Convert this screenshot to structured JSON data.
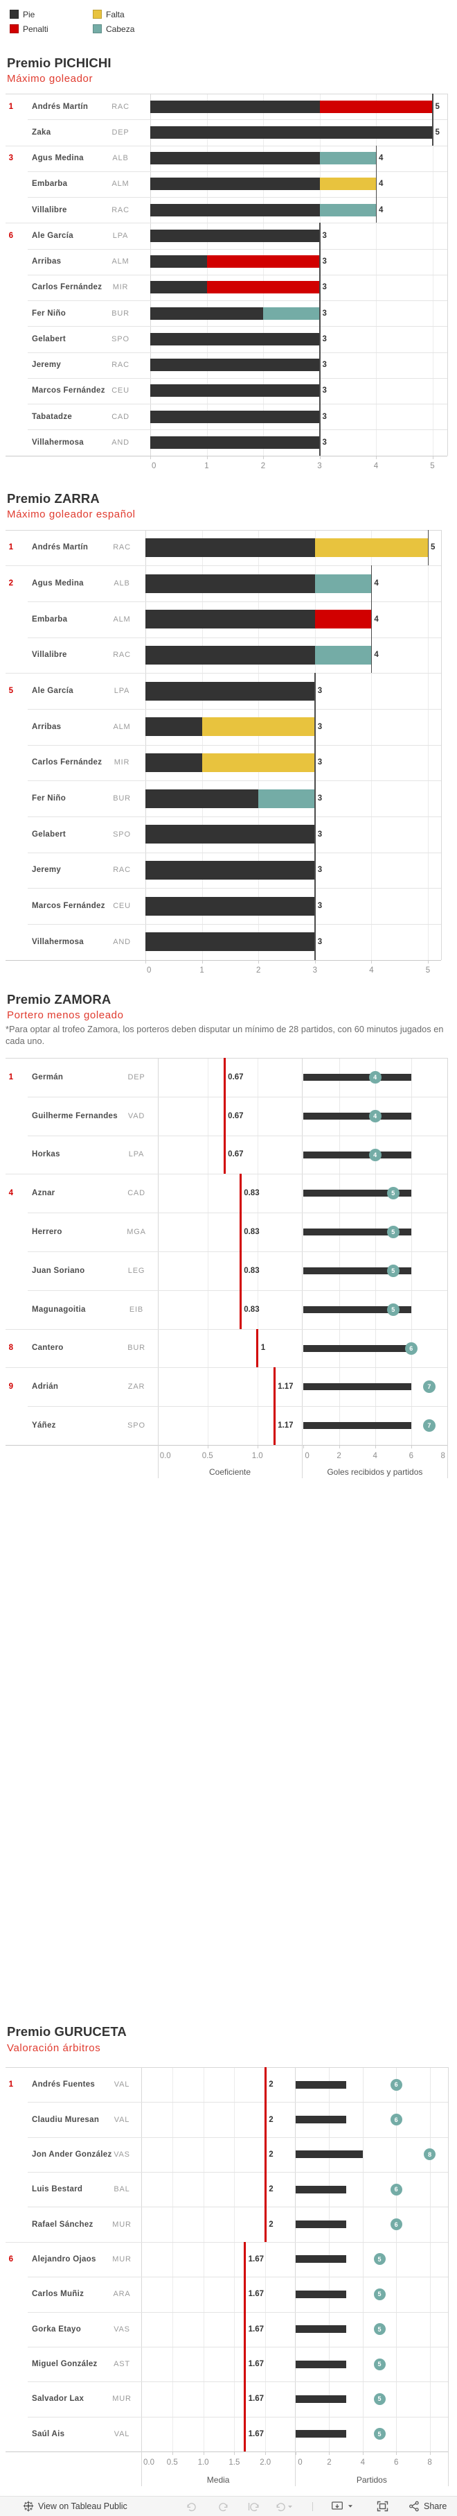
{
  "legend": {
    "items": [
      {
        "label": "Pie",
        "color": "#333333"
      },
      {
        "label": "Penalti",
        "color": "#d10000"
      },
      {
        "label": "Falta",
        "color": "#e8c33e"
      },
      {
        "label": "Cabeza",
        "color": "#74aca6"
      }
    ]
  },
  "colors": {
    "pie": "#333333",
    "penalti": "#d10000",
    "falta": "#e8c33e",
    "cabeza": "#74aca6",
    "accent_red": "#d10000",
    "subtitle_red": "#e03b2f",
    "bar_dark": "#333333",
    "circle_teal": "#74aca6"
  },
  "chart_data": [
    {
      "type": "bar",
      "stacked": true,
      "title": "Premio PICHICHI",
      "subtitle": "Máximo goleador",
      "xlim": [
        0,
        5
      ],
      "xticks": [
        "0",
        "1",
        "2",
        "3",
        "4",
        "5"
      ],
      "legend_entries": [
        "Pie",
        "Penalti",
        "Falta",
        "Cabeza"
      ],
      "rows": [
        {
          "rank": "1",
          "name": "Andrés Martín",
          "team": "RAC",
          "total": 5,
          "segments": {
            "pie": 3,
            "penalti": 2
          }
        },
        {
          "rank": "",
          "name": "Zaka",
          "team": "DEP",
          "total": 5,
          "segments": {
            "pie": 5
          }
        },
        {
          "rank": "3",
          "name": "Agus Medina",
          "team": "ALB",
          "total": 4,
          "segments": {
            "pie": 3,
            "cabeza": 1
          }
        },
        {
          "rank": "",
          "name": "Embarba",
          "team": "ALM",
          "total": 4,
          "segments": {
            "pie": 3,
            "falta": 1
          }
        },
        {
          "rank": "",
          "name": "Villalibre",
          "team": "RAC",
          "total": 4,
          "segments": {
            "pie": 3,
            "cabeza": 1
          }
        },
        {
          "rank": "6",
          "name": "Ale García",
          "team": "LPA",
          "total": 3,
          "segments": {
            "pie": 3
          }
        },
        {
          "rank": "",
          "name": "Arribas",
          "team": "ALM",
          "total": 3,
          "segments": {
            "pie": 1,
            "penalti": 2
          }
        },
        {
          "rank": "",
          "name": "Carlos Fernández",
          "team": "MIR",
          "total": 3,
          "segments": {
            "pie": 1,
            "penalti": 2
          }
        },
        {
          "rank": "",
          "name": "Fer Niño",
          "team": "BUR",
          "total": 3,
          "segments": {
            "pie": 2,
            "cabeza": 1
          }
        },
        {
          "rank": "",
          "name": "Gelabert",
          "team": "SPO",
          "total": 3,
          "segments": {
            "pie": 3
          }
        },
        {
          "rank": "",
          "name": "Jeremy",
          "team": "RAC",
          "total": 3,
          "segments": {
            "pie": 3
          }
        },
        {
          "rank": "",
          "name": "Marcos Fernández",
          "team": "CEU",
          "total": 3,
          "segments": {
            "pie": 3
          }
        },
        {
          "rank": "",
          "name": "Tabatadze",
          "team": "CAD",
          "total": 3,
          "segments": {
            "pie": 3
          }
        },
        {
          "rank": "",
          "name": "Villahermosa",
          "team": "AND",
          "total": 3,
          "segments": {
            "pie": 3
          }
        }
      ]
    },
    {
      "type": "bar",
      "stacked": true,
      "title": "Premio ZARRA",
      "subtitle": "Máximo goleador español",
      "xlim": [
        0,
        5
      ],
      "xticks": [
        "0",
        "1",
        "2",
        "3",
        "4",
        "5"
      ],
      "legend_entries": [
        "Pie",
        "Penalti",
        "Falta",
        "Cabeza"
      ],
      "rows": [
        {
          "rank": "1",
          "name": "Andrés Martín",
          "team": "RAC",
          "total": 5,
          "segments": {
            "pie": 3,
            "falta": 2
          }
        },
        {
          "rank": "2",
          "name": "Agus Medina",
          "team": "ALB",
          "total": 4,
          "segments": {
            "pie": 3,
            "cabeza": 1
          }
        },
        {
          "rank": "",
          "name": "Embarba",
          "team": "ALM",
          "total": 4,
          "segments": {
            "pie": 3,
            "penalti": 1
          }
        },
        {
          "rank": "",
          "name": "Villalibre",
          "team": "RAC",
          "total": 4,
          "segments": {
            "pie": 3,
            "cabeza": 1
          }
        },
        {
          "rank": "5",
          "name": "Ale García",
          "team": "LPA",
          "total": 3,
          "segments": {
            "pie": 3
          }
        },
        {
          "rank": "",
          "name": "Arribas",
          "team": "ALM",
          "total": 3,
          "segments": {
            "pie": 1,
            "falta": 2
          }
        },
        {
          "rank": "",
          "name": "Carlos Fernández",
          "team": "MIR",
          "total": 3,
          "segments": {
            "pie": 1,
            "falta": 2
          }
        },
        {
          "rank": "",
          "name": "Fer Niño",
          "team": "BUR",
          "total": 3,
          "segments": {
            "pie": 2,
            "cabeza": 1
          }
        },
        {
          "rank": "",
          "name": "Gelabert",
          "team": "SPO",
          "total": 3,
          "segments": {
            "pie": 3
          }
        },
        {
          "rank": "",
          "name": "Jeremy",
          "team": "RAC",
          "total": 3,
          "segments": {
            "pie": 3
          }
        },
        {
          "rank": "",
          "name": "Marcos Fernández",
          "team": "CEU",
          "total": 3,
          "segments": {
            "pie": 3
          }
        },
        {
          "rank": "",
          "name": "Villahermosa",
          "team": "AND",
          "total": 3,
          "segments": {
            "pie": 3
          }
        }
      ]
    },
    {
      "type": "bar",
      "dual_panel": true,
      "title": "Premio ZAMORA",
      "subtitle": "Portero menos goleado",
      "note_lines": [
        "*Para optar al trofeo Zamora, los porteros deben disputar un mínimo de 28 partidos, con 60 minutos jugados en",
        "cada uno."
      ],
      "panel_left": {
        "title": "Coeficiente",
        "ticks": [
          "0.0",
          "0.5",
          "1.0"
        ],
        "tick_values": [
          0,
          0.5,
          1
        ]
      },
      "panel_right": {
        "title": "Goles recibidos y partidos",
        "ticks": [
          "0",
          "2",
          "4",
          "6",
          "8"
        ],
        "tick_values": [
          0,
          2,
          4,
          6,
          8
        ]
      },
      "rows": [
        {
          "rank": "1",
          "name": "Germán",
          "team": "DEP",
          "coef": 0.67,
          "coef_label": "0.67",
          "bar": 6,
          "circle": 4
        },
        {
          "rank": "",
          "name": "Guilherme Fernandes",
          "team": "VAD",
          "coef": 0.67,
          "coef_label": "0.67",
          "bar": 6,
          "circle": 4
        },
        {
          "rank": "",
          "name": "Horkas",
          "team": "LPA",
          "coef": 0.67,
          "coef_label": "0.67",
          "bar": 6,
          "circle": 4
        },
        {
          "rank": "4",
          "name": "Aznar",
          "team": "CAD",
          "coef": 0.83,
          "coef_label": "0.83",
          "bar": 6,
          "circle": 5
        },
        {
          "rank": "",
          "name": "Herrero",
          "team": "MGA",
          "coef": 0.83,
          "coef_label": "0.83",
          "bar": 6,
          "circle": 5
        },
        {
          "rank": "",
          "name": "Juan Soriano",
          "team": "LEG",
          "coef": 0.83,
          "coef_label": "0.83",
          "bar": 6,
          "circle": 5
        },
        {
          "rank": "",
          "name": "Magunagoitia",
          "team": "EIB",
          "coef": 0.83,
          "coef_label": "0.83",
          "bar": 6,
          "circle": 5
        },
        {
          "rank": "8",
          "name": "Cantero",
          "team": "BUR",
          "coef": 1,
          "coef_label": "1",
          "bar": 6,
          "circle": 6
        },
        {
          "rank": "9",
          "name": "Adrián",
          "team": "ZAR",
          "coef": 1.17,
          "coef_label": "1.17",
          "bar": 6,
          "circle": 7
        },
        {
          "rank": "",
          "name": "Yáñez",
          "team": "SPO",
          "coef": 1.17,
          "coef_label": "1.17",
          "bar": 6,
          "circle": 7
        }
      ]
    },
    {
      "type": "bar",
      "dual_panel": true,
      "title": "Premio GURUCETA",
      "subtitle": "Valoración árbitros",
      "panel_left": {
        "title": "Media",
        "ticks": [
          "0.0",
          "0.5",
          "1.0",
          "1.5",
          "2.0"
        ],
        "tick_values": [
          0,
          0.5,
          1,
          1.5,
          2
        ]
      },
      "panel_right": {
        "title": "Partidos",
        "ticks": [
          "0",
          "2",
          "4",
          "6",
          "8"
        ],
        "tick_values": [
          0,
          2,
          4,
          6,
          8
        ]
      },
      "rows": [
        {
          "rank": "1",
          "name": "Andrés Fuentes",
          "team": "VAL",
          "coef": 2,
          "coef_label": "2",
          "bar": 3,
          "circle": 6
        },
        {
          "rank": "",
          "name": "Claudiu Muresan",
          "team": "VAL",
          "coef": 2,
          "coef_label": "2",
          "bar": 3,
          "circle": 6
        },
        {
          "rank": "",
          "name": "Jon Ander González",
          "team": "VAS",
          "coef": 2,
          "coef_label": "2",
          "bar": 4,
          "circle": 8
        },
        {
          "rank": "",
          "name": "Luis Bestard",
          "team": "BAL",
          "coef": 2,
          "coef_label": "2",
          "bar": 3,
          "circle": 6
        },
        {
          "rank": "",
          "name": "Rafael Sánchez",
          "team": "MUR",
          "coef": 2,
          "coef_label": "2",
          "bar": 3,
          "circle": 6
        },
        {
          "rank": "6",
          "name": "Alejandro Ojaos",
          "team": "MUR",
          "coef": 1.67,
          "coef_label": "1.67",
          "bar": 3,
          "circle": 5
        },
        {
          "rank": "",
          "name": "Carlos Muñiz",
          "team": "ARA",
          "coef": 1.67,
          "coef_label": "1.67",
          "bar": 3,
          "circle": 5
        },
        {
          "rank": "",
          "name": "Gorka Etayo",
          "team": "VAS",
          "coef": 1.67,
          "coef_label": "1.67",
          "bar": 3,
          "circle": 5
        },
        {
          "rank": "",
          "name": "Miguel González",
          "team": "AST",
          "coef": 1.67,
          "coef_label": "1.67",
          "bar": 3,
          "circle": 5
        },
        {
          "rank": "",
          "name": "Salvador Lax",
          "team": "MUR",
          "coef": 1.67,
          "coef_label": "1.67",
          "bar": 3,
          "circle": 5
        },
        {
          "rank": "",
          "name": "Saúl Ais",
          "team": "VAL",
          "coef": 1.67,
          "coef_label": "1.67",
          "bar": 3,
          "circle": 5
        }
      ]
    }
  ],
  "toolbar": {
    "view_label": "View on Tableau Public",
    "share_label": "Share",
    "buttons": [
      "undo",
      "redo",
      "replay",
      "refresh",
      "device-preview",
      "fullscreen",
      "share"
    ]
  }
}
